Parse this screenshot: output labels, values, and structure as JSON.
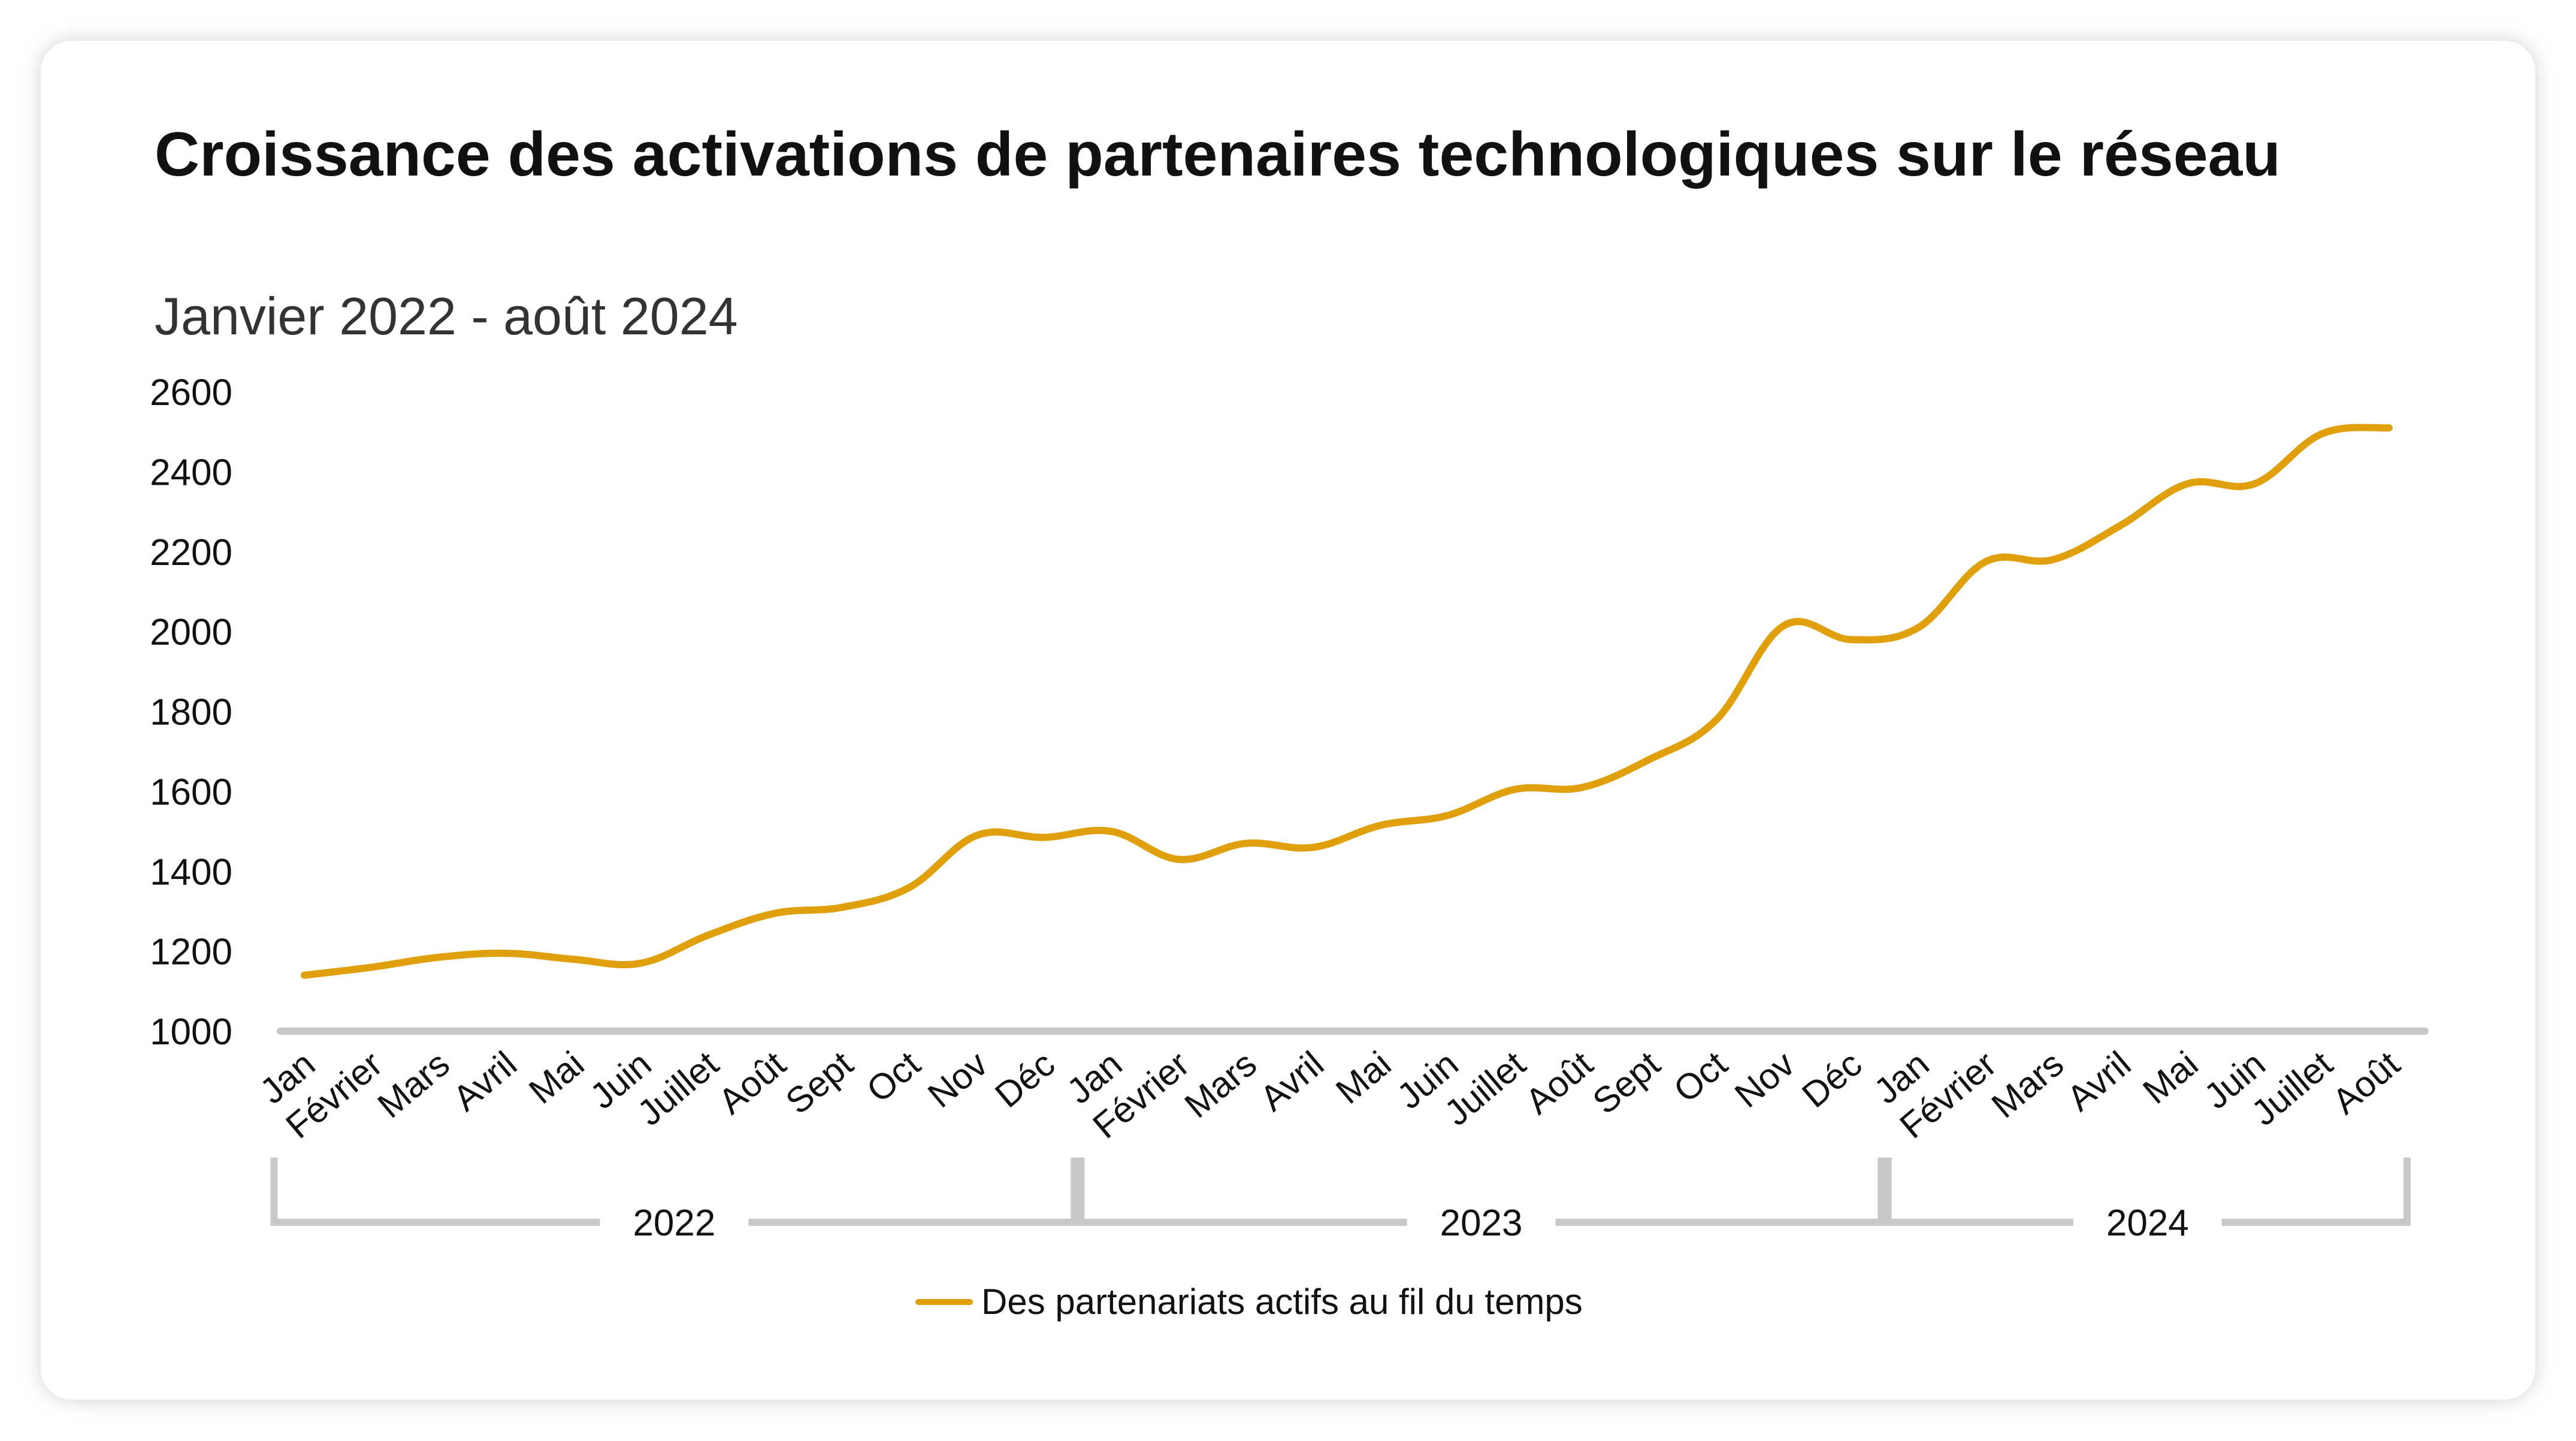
{
  "title": "Croissance des activations de partenaires technologiques sur le réseau",
  "subtitle": "Janvier 2022 - août 2024",
  "colors": {
    "line": "#E0A00C",
    "axis": "#C8C8C8",
    "text": "#111111"
  },
  "chart_data": {
    "type": "line",
    "ylim": [
      1000,
      2600
    ],
    "yticks": [
      "1000",
      "1200",
      "1400",
      "1600",
      "1800",
      "2000",
      "2200",
      "2400",
      "2600"
    ],
    "categories": [
      "Jan",
      "Février",
      "Mars",
      "Avril",
      "Mai",
      "Juin",
      "Juillet",
      "Août",
      "Sept",
      "Oct",
      "Nov",
      "Déc",
      "Jan",
      "Février",
      "Mars",
      "Avril",
      "Mai",
      "Juin",
      "Juillet",
      "Août",
      "Sept",
      "Oct",
      "Nov",
      "Déc",
      "Jan",
      "Février",
      "Mars",
      "Avril",
      "Mai",
      "Juin",
      "Juillet",
      "Août"
    ],
    "groups": [
      {
        "label": "2022",
        "count": 12
      },
      {
        "label": "2023",
        "count": 12
      },
      {
        "label": "2024",
        "count": 8
      }
    ],
    "series": [
      {
        "name": "Des partenariats actifs au fil du temps",
        "values": [
          1140,
          1160,
          1185,
          1195,
          1180,
          1170,
          1240,
          1295,
          1310,
          1360,
          1490,
          1485,
          1500,
          1430,
          1470,
          1460,
          1515,
          1540,
          1605,
          1610,
          1680,
          1780,
          2015,
          1980,
          2010,
          2175,
          2180,
          2265,
          2370,
          2370,
          2495,
          2510
        ]
      }
    ],
    "grid": false,
    "legend": "bottom-center"
  }
}
